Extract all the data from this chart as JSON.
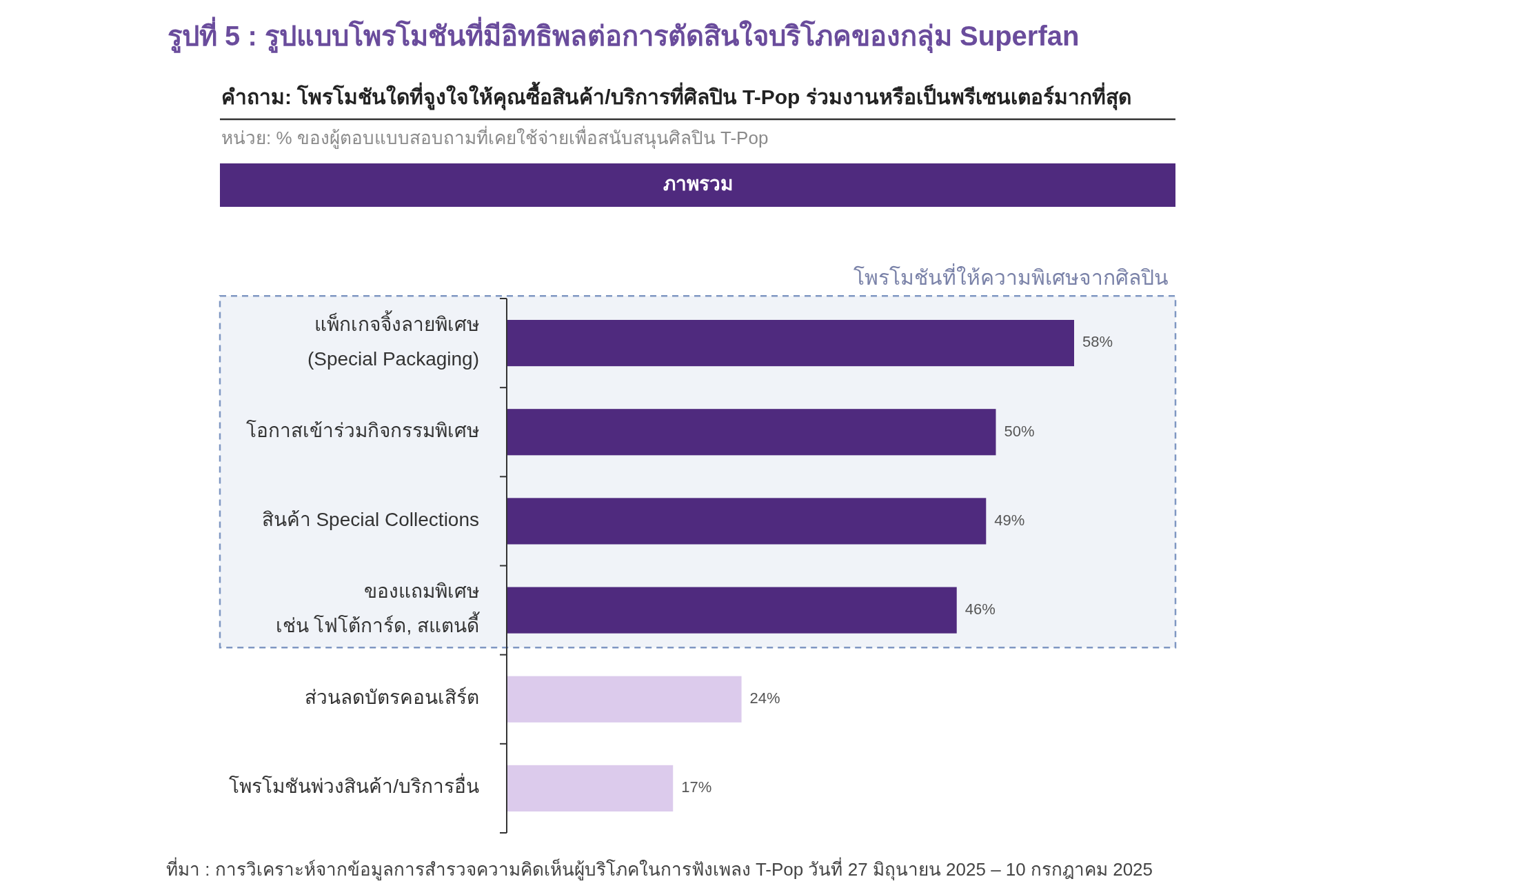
{
  "chart_data": {
    "type": "bar",
    "orientation": "horizontal",
    "title": "รูปที่ 5 : รูปแบบโพรโมชันที่มีอิทธิพลต่อการตัดสินใจบริโภคของกลุ่ม Superfan",
    "subtitle": "คำถาม: โพรโมชันใดที่จูงใจให้คุณซื้อสินค้า/บริการที่ศิลปิน T-Pop ร่วมงานหรือเป็นพรีเซนเตอร์มากที่สุด",
    "annotations": [
      "หน่วย: % ของผู้ตอบแบบสอบถามที่เคยใช้จ่ายเพื่อสนับสนุนศิลปิน T-Pop",
      "ภาพรวม",
      "ที่มา : การวิเคราะห์จากข้อมูลการสำรวจความคิดเห็นผู้บริโภคในการฟังเพลง T-Pop วันที่ 27 มิถุนายน 2025 – 10 กรกฎาคม 2025"
    ],
    "categories": [
      "แพ็กเกจจิ้งลายพิเศษ\n(Special Packaging)",
      "โอกาสเข้าร่วมกิจกรรมพิเศษ",
      "สินค้า Special Collections",
      "ของแถมพิเศษ\nเช่น โฟโต้การ์ด, สแตนดี้",
      "ส่วนลดบัตรคอนเสิร์ต",
      "โพรโมชันพ่วงสินค้า/บริการอื่น"
    ],
    "values": [
      58,
      50,
      49,
      46,
      24,
      17
    ],
    "value_labels": [
      "58%",
      "50%",
      "49%",
      "46%",
      "24%",
      "17%"
    ],
    "colors": [
      "#4f2a7e",
      "#4f2a7e",
      "#4f2a7e",
      "#4f2a7e",
      "#dccbec",
      "#dccbec"
    ],
    "bands": [
      {
        "axis": "y",
        "from": "แพ็กเกจจิ้งลายพิเศษ\n(Special Packaging)",
        "to": "ของแถมพิเศษ\nเช่น โฟโต้การ์ด, สแตนดี้",
        "label": "โพรโมชันที่ให้ความพิเศษจากศิลปิน",
        "color": "#f0f3f8"
      }
    ]
  }
}
